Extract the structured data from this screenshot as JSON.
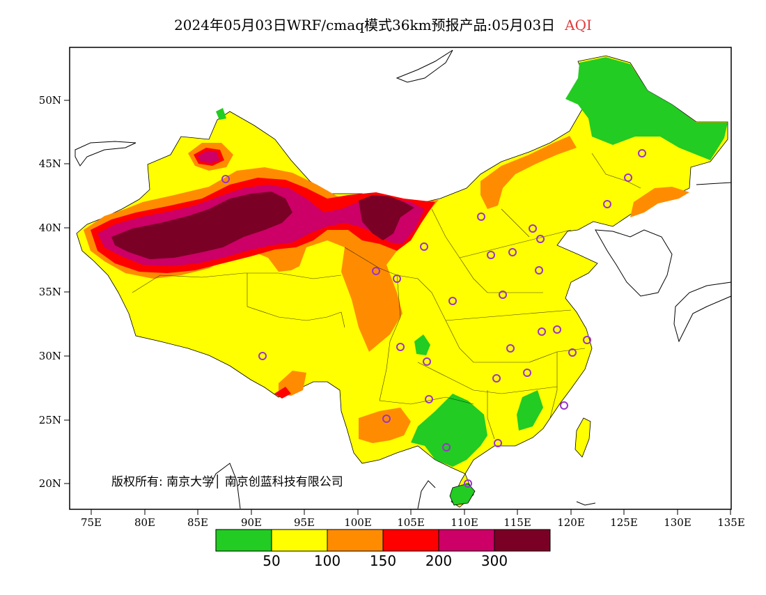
{
  "title": "2024年05月03日WRF/cmaq模式36km预报产品:05月03日",
  "variable": "AQI",
  "copyright": "版权所有: 南京大学│ 南京创蓝科技有限公司",
  "lat_ticks": [
    "50N",
    "45N",
    "40N",
    "35N",
    "30N",
    "25N",
    "20N"
  ],
  "lon_ticks": [
    "75E",
    "80E",
    "85E",
    "90E",
    "95E",
    "100E",
    "105E",
    "110E",
    "115E",
    "120E",
    "125E",
    "130E",
    "135E"
  ],
  "legend": {
    "colors": [
      "#22cc22",
      "#ffff00",
      "#ff8c00",
      "#ff0000",
      "#cc0066",
      "#7a0026"
    ],
    "labels": [
      "50",
      "100",
      "150",
      "200",
      "300"
    ]
  },
  "colors": {
    "good": "#22cc22",
    "moderate": "#ffff00",
    "usg": "#ff8c00",
    "unhealthy": "#ff0000",
    "very_unhealthy": "#cc0066",
    "hazardous": "#7a0026",
    "station_marker": "#9933cc"
  }
}
